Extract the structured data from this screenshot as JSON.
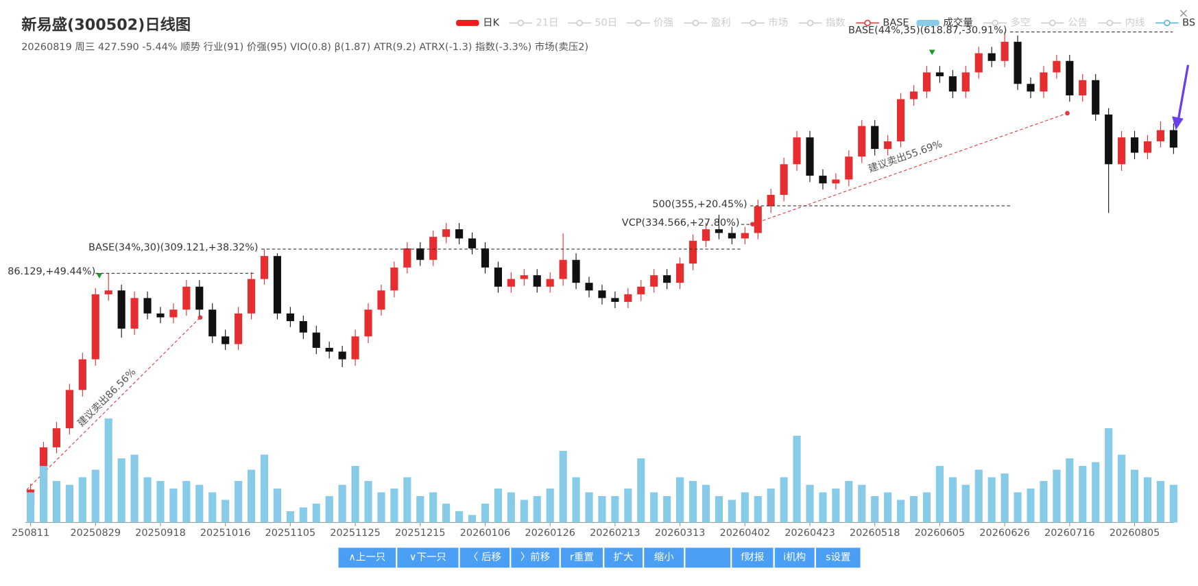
{
  "header": {
    "title": "新易盛(300502)日线图",
    "subtitle": "20260819 周三 427.590 -5.44% 顺势 行业(91) 价强(95) VIO(0.8) β(1.87) ATR(9.2) ATRX(-1.3) 指数(-3.3%) 市场(卖压2)",
    "close": "×"
  },
  "legend": [
    {
      "name": "日K",
      "color": "#ee1c1c",
      "active": true,
      "icon": "bar"
    },
    {
      "name": "21日",
      "color": "#cccccc",
      "active": false,
      "icon": "line"
    },
    {
      "name": "50日",
      "color": "#cccccc",
      "active": false,
      "icon": "line"
    },
    {
      "name": "价强",
      "color": "#cccccc",
      "active": false,
      "icon": "line"
    },
    {
      "name": "盈利",
      "color": "#cccccc",
      "active": false,
      "icon": "line"
    },
    {
      "name": "市场",
      "color": "#cccccc",
      "active": false,
      "icon": "line"
    },
    {
      "name": "指数",
      "color": "#cccccc",
      "active": false,
      "icon": "line"
    },
    {
      "name": "BASE",
      "color": "#e0393e",
      "active": true,
      "icon": "line"
    },
    {
      "name": "成交量",
      "color": "#87cbe8",
      "active": true,
      "icon": "bar"
    },
    {
      "name": "多空",
      "color": "#cccccc",
      "active": false,
      "icon": "line"
    },
    {
      "name": "公告",
      "color": "#cccccc",
      "active": false,
      "icon": "line"
    },
    {
      "name": "内线",
      "color": "#cccccc",
      "active": false,
      "icon": "line"
    },
    {
      "name": "BS",
      "color": "#5ab1d8",
      "active": true,
      "icon": "line"
    }
  ],
  "chart_data": [
    {
      "type": "candlestick",
      "log": true,
      "ylim": [
        130,
        640
      ],
      "up_color": "#e62d2f",
      "down_color": "#111111",
      "open": [
        136,
        143.4,
        164.1,
        174.4,
        197.1,
        217.4,
        267.6,
        270.9,
        239.8,
        264.4,
        251.7,
        248.6,
        254.8,
        274.2,
        254.8,
        233.9,
        228.2,
        251.7,
        281.0,
        302.4,
        251.7,
        245.6,
        236.8,
        225.5,
        222.8,
        217.4,
        233.9,
        254.8,
        270.9,
        291.5,
        309.9,
        298.7,
        321.5,
        329.4,
        319.9,
        309.9,
        291.5,
        274.2,
        281.0,
        284.4,
        274.2,
        281.0,
        298.7,
        277.6,
        270.9,
        264.4,
        261.2,
        267.6,
        274.2,
        284.4,
        277.6,
        295.2,
        317.5,
        329.4,
        325.5,
        319.9,
        325.5,
        354.5,
        367.7,
        405.5,
        441.8,
        390.9,
        381.4,
        386.2,
        415.5,
        458.2,
        425.8,
        436.3,
        499.2,
        511.6,
        543.8,
        537.1,
        511.6,
        543.8,
        578.1,
        564.1,
        599.7,
        524.2,
        511.6,
        543.8,
        564.1,
        505.3,
        530.5,
        475.3,
        405.5,
        441.8,
        420.7,
        436.3,
        452.2
      ],
      "high": [
        146,
        167,
        178,
        201,
        222,
        273,
        286.129,
        276,
        270,
        270,
        257,
        260,
        280,
        280,
        260,
        239,
        257,
        287,
        309.121,
        305,
        257,
        250,
        242,
        230,
        227,
        239,
        260,
        276,
        297,
        316,
        316,
        328,
        336,
        336,
        326,
        316,
        297,
        287,
        290,
        290,
        287,
        325,
        305,
        283,
        276,
        270,
        273,
        280,
        290,
        290,
        301,
        324,
        336,
        345,
        332,
        332,
        362,
        375,
        414,
        451,
        451,
        399,
        394,
        424,
        467,
        467,
        445,
        509,
        522,
        555,
        555,
        548,
        555,
        590,
        590,
        618.87,
        612,
        535,
        555,
        575,
        575,
        541,
        541,
        485,
        451,
        451,
        445,
        465,
        462
      ],
      "low": [
        130,
        141,
        161,
        171,
        193,
        213,
        262,
        233,
        235,
        247,
        244,
        244,
        250,
        250,
        229,
        224,
        224,
        247,
        276,
        247,
        241,
        232,
        221,
        218,
        212,
        213,
        229,
        250,
        265,
        286,
        293,
        293,
        315,
        314,
        304,
        286,
        269,
        269,
        275,
        269,
        269,
        275,
        272,
        265,
        259,
        256,
        256,
        262,
        269,
        272,
        272,
        289,
        311,
        319,
        314,
        314,
        319,
        347,
        360,
        397,
        383,
        374,
        374,
        378,
        407,
        417,
        417,
        428,
        489,
        501,
        526,
        501,
        501,
        533,
        553,
        553,
        514,
        501,
        501,
        533,
        495,
        495,
        466,
        347,
        397,
        412,
        412,
        428,
        419
      ],
      "close": [
        143.4,
        164.1,
        174.4,
        197.1,
        217.4,
        267.6,
        270.9,
        239.8,
        264.4,
        251.7,
        248.6,
        254.8,
        274.2,
        254.8,
        233.9,
        228.2,
        251.7,
        281.0,
        302.4,
        251.7,
        245.6,
        236.8,
        225.5,
        222.8,
        217.4,
        233.9,
        254.8,
        270.9,
        291.5,
        309.9,
        298.7,
        321.5,
        329.4,
        319.9,
        309.9,
        291.5,
        274.2,
        281.0,
        284.4,
        274.2,
        281.0,
        298.7,
        277.6,
        270.9,
        264.4,
        261.2,
        267.6,
        274.2,
        284.4,
        277.6,
        295.2,
        317.5,
        329.4,
        325.5,
        319.9,
        325.5,
        354.5,
        367.7,
        405.5,
        441.8,
        390.9,
        381.4,
        386.2,
        415.5,
        458.2,
        425.8,
        436.3,
        499.2,
        511.6,
        543.8,
        537.1,
        511.6,
        543.8,
        578.1,
        564.1,
        599.7,
        524.2,
        511.6,
        543.8,
        564.1,
        505.3,
        530.5,
        475.3,
        405.5,
        441.8,
        420.7,
        436.3,
        452.2,
        427.59
      ],
      "annotations": [
        {
          "value": 309.121,
          "label": "BASE(34%,30)(309.121,+38.32%)"
        },
        {
          "value": 286.129,
          "label": "86.129,+49.44%)"
        },
        {
          "value": 618.87,
          "label": "BASE(44%,35)(618.87,-30.91%)"
        },
        {
          "value": 355,
          "label": "500(355,+20.45%)"
        },
        {
          "value": 334.566,
          "label": "VCP(334.566,+27.80%)"
        }
      ],
      "sell_labels": [
        "建议卖出86.56%",
        "建议卖出55.69%"
      ]
    },
    {
      "type": "bar",
      "color": "#87cbe8",
      "ylim": [
        0,
        140
      ],
      "categories": [
        "250811",
        null,
        null,
        null,
        null,
        "20250829",
        null,
        null,
        null,
        null,
        "20250918",
        null,
        null,
        null,
        null,
        "20251016",
        null,
        null,
        null,
        null,
        "20251105",
        null,
        null,
        null,
        null,
        "20251125",
        null,
        null,
        null,
        null,
        "20251215",
        null,
        null,
        null,
        null,
        "20260106",
        null,
        null,
        null,
        null,
        "20260126",
        null,
        null,
        null,
        null,
        "20260213",
        null,
        null,
        null,
        null,
        "20260313",
        null,
        null,
        null,
        null,
        "20260402",
        null,
        null,
        null,
        null,
        "20260423",
        null,
        null,
        null,
        null,
        "20260518",
        null,
        null,
        null,
        null,
        "20260605",
        null,
        null,
        null,
        null,
        "20260626",
        null,
        null,
        null,
        null,
        "20260716",
        null,
        null,
        null,
        null,
        "20260805",
        null,
        null,
        null
      ],
      "values": [
        40,
        75,
        55,
        50,
        60,
        70,
        138,
        85,
        90,
        60,
        55,
        45,
        55,
        50,
        40,
        30,
        55,
        70,
        90,
        45,
        15,
        20,
        25,
        35,
        50,
        75,
        55,
        40,
        45,
        60,
        35,
        40,
        25,
        15,
        10,
        25,
        45,
        40,
        30,
        35,
        45,
        95,
        60,
        40,
        35,
        35,
        45,
        85,
        40,
        35,
        60,
        55,
        50,
        35,
        30,
        40,
        35,
        45,
        60,
        115,
        50,
        40,
        45,
        55,
        50,
        35,
        40,
        30,
        35,
        40,
        75,
        60,
        50,
        70,
        60,
        65,
        40,
        45,
        55,
        70,
        85,
        75,
        80,
        125,
        90,
        70,
        60,
        55,
        50
      ]
    }
  ],
  "buttons": [
    "∧上一只",
    "∨下一只",
    "〈 后移",
    "〉前移",
    "r重置",
    "扩大",
    "缩小",
    "f财报",
    "i机构",
    "s设置"
  ]
}
